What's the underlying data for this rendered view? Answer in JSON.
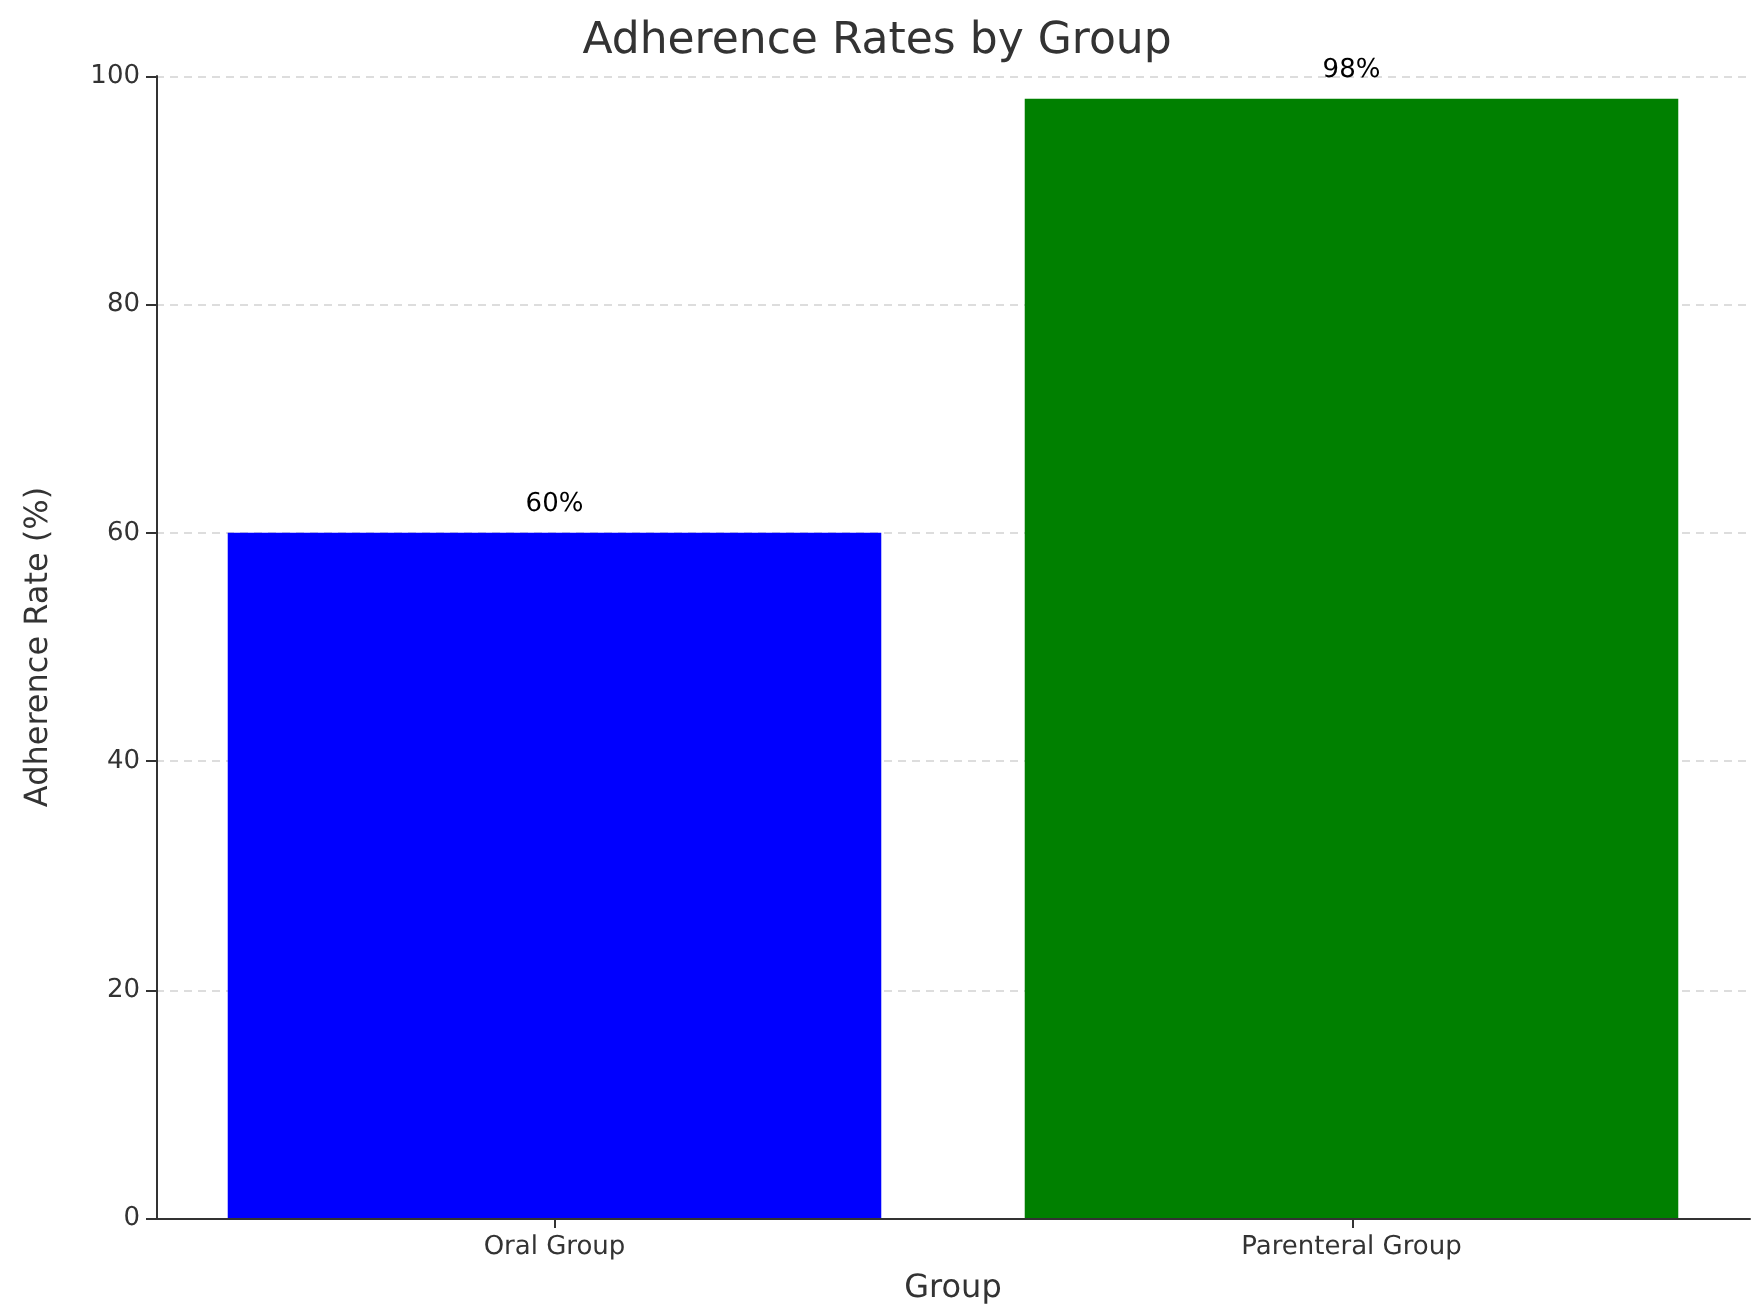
{
  "chart_data": {
    "type": "bar",
    "title": "Adherence Rates by Group",
    "xlabel": "Group",
    "ylabel": "Adherence Rate (%)",
    "categories": [
      "Oral Group",
      "Parenteral Group"
    ],
    "values": [
      60,
      98
    ],
    "colors": [
      "#0000ff",
      "#008000"
    ],
    "value_labels": [
      "60%",
      "98%"
    ],
    "ylim": [
      0,
      100
    ],
    "yticks": [
      0,
      20,
      40,
      60,
      80,
      100
    ],
    "grid": true
  }
}
